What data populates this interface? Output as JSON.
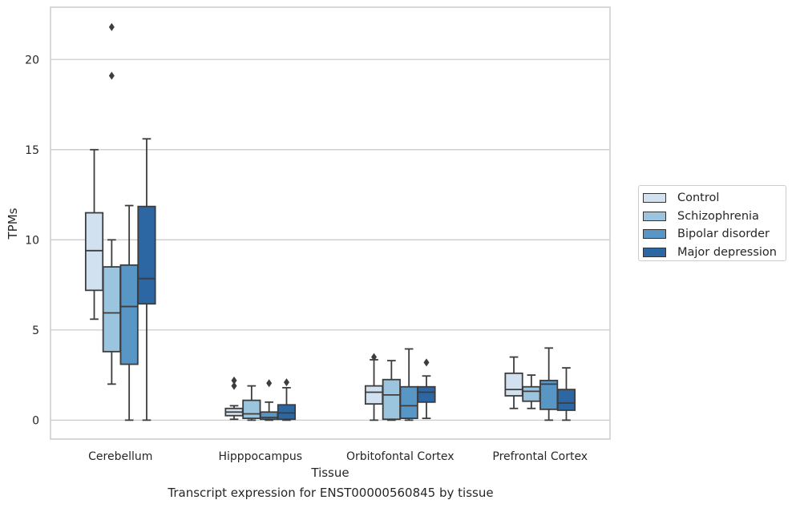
{
  "chart_data": {
    "type": "box",
    "title": "",
    "caption": "Transcript expression for ENST00000560845 by tissue",
    "xlabel": "Tissue",
    "ylabel": "TPMs",
    "ylim": [
      -1.05,
      22.9
    ],
    "yticks": [
      0,
      5,
      10,
      15,
      20
    ],
    "categories": [
      "Cerebellum",
      "Hipppocampus",
      "Orbitofontal Cortex",
      "Prefrontal Cortex"
    ],
    "grid": "horizontal",
    "legend_position": "right",
    "series": [
      {
        "name": "Control",
        "color": "#d1e1f0",
        "boxes": [
          {
            "whisker_low": 5.6,
            "q1": 7.2,
            "median": 9.4,
            "q3": 11.5,
            "whisker_high": 15.0,
            "outliers": []
          },
          {
            "whisker_low": 0.05,
            "q1": 0.25,
            "median": 0.45,
            "q3": 0.65,
            "whisker_high": 0.8,
            "outliers": [
              1.9,
              2.2
            ]
          },
          {
            "whisker_low": 0.0,
            "q1": 0.9,
            "median": 1.55,
            "q3": 1.9,
            "whisker_high": 3.35,
            "outliers": [
              3.5
            ]
          },
          {
            "whisker_low": 0.65,
            "q1": 1.35,
            "median": 1.7,
            "q3": 2.6,
            "whisker_high": 3.5,
            "outliers": []
          }
        ]
      },
      {
        "name": "Schizophrenia",
        "color": "#9bc4de",
        "boxes": [
          {
            "whisker_low": 2.0,
            "q1": 3.8,
            "median": 5.95,
            "q3": 8.5,
            "whisker_high": 10.0,
            "outliers": [
              19.1,
              21.8
            ]
          },
          {
            "whisker_low": 0.0,
            "q1": 0.1,
            "median": 0.35,
            "q3": 1.1,
            "whisker_high": 1.9,
            "outliers": []
          },
          {
            "whisker_low": 0.0,
            "q1": 0.05,
            "median": 1.4,
            "q3": 2.25,
            "whisker_high": 3.3,
            "outliers": []
          },
          {
            "whisker_low": 0.65,
            "q1": 1.05,
            "median": 1.6,
            "q3": 1.85,
            "whisker_high": 2.5,
            "outliers": []
          }
        ]
      },
      {
        "name": "Bipolar disorder",
        "color": "#5896c6",
        "boxes": [
          {
            "whisker_low": 0.0,
            "q1": 3.1,
            "median": 6.3,
            "q3": 8.6,
            "whisker_high": 11.9,
            "outliers": []
          },
          {
            "whisker_low": 0.0,
            "q1": 0.05,
            "median": 0.15,
            "q3": 0.45,
            "whisker_high": 1.0,
            "outliers": [
              2.05
            ]
          },
          {
            "whisker_low": 0.0,
            "q1": 0.1,
            "median": 0.8,
            "q3": 1.85,
            "whisker_high": 3.95,
            "outliers": []
          },
          {
            "whisker_low": 0.0,
            "q1": 0.6,
            "median": 2.0,
            "q3": 2.2,
            "whisker_high": 4.0,
            "outliers": []
          }
        ]
      },
      {
        "name": "Major depression",
        "color": "#2c66a3",
        "boxes": [
          {
            "whisker_low": 0.0,
            "q1": 6.45,
            "median": 7.85,
            "q3": 11.85,
            "whisker_high": 15.6,
            "outliers": []
          },
          {
            "whisker_low": 0.0,
            "q1": 0.05,
            "median": 0.4,
            "q3": 0.85,
            "whisker_high": 1.8,
            "outliers": [
              2.1
            ]
          },
          {
            "whisker_low": 0.1,
            "q1": 1.0,
            "median": 1.55,
            "q3": 1.85,
            "whisker_high": 2.45,
            "outliers": [
              3.2
            ]
          },
          {
            "whisker_low": 0.0,
            "q1": 0.55,
            "median": 0.95,
            "q3": 1.7,
            "whisker_high": 2.9,
            "outliers": []
          }
        ]
      }
    ]
  }
}
